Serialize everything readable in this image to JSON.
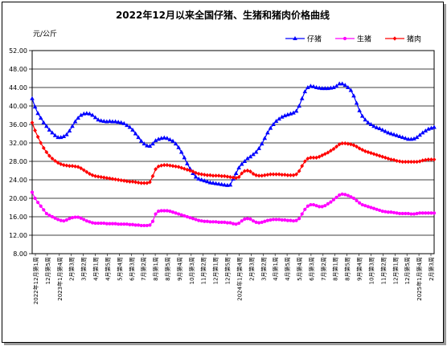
{
  "chart_data": {
    "type": "line",
    "title": "2022年12月以来全国仔猪、生猪和猪肉价格曲线",
    "unit_label": "元/公斤",
    "ylim": [
      8.0,
      52.0
    ],
    "y_ticks": [
      "8.00",
      "12.00",
      "16.00",
      "20.00",
      "24.00",
      "28.00",
      "32.00",
      "36.00",
      "40.00",
      "44.00",
      "48.00",
      "52.00"
    ],
    "grid": true,
    "legend_position": "top-right",
    "x_tick_labels": [
      "2022年12月第1周",
      "12月第5周",
      "2023年1月第4周",
      "2月第3周",
      "3月第2周",
      "4月第1周",
      "4月第5周",
      "5月第4周",
      "6月第3周",
      "7月第2周",
      "8月第1周",
      "8月第5周",
      "9月第4周",
      "10月第3周",
      "11月第2周",
      "12月第1周",
      "12月第5周",
      "2024年1月第4周",
      "2月第3周",
      "3月第2周",
      "4月第1周",
      "4月第5周",
      "5月第4周",
      "6月第3周",
      "7月第2周",
      "8月第1周",
      "8月第5周",
      "9月第4周",
      "10月第3周",
      "11月第2周",
      "12月第1周",
      "12月第5周",
      "2025年1月第4周",
      "2月第3周"
    ],
    "series": [
      {
        "name": "仔猪",
        "color": "#0000ff",
        "marker": "triangle",
        "values": [
          41.6,
          39.8,
          38.4,
          37.4,
          36.4,
          35.6,
          34.8,
          34.2,
          33.6,
          33.2,
          33.2,
          33.4,
          33.8,
          34.6,
          35.6,
          36.6,
          37.4,
          38.0,
          38.3,
          38.4,
          38.3,
          38.0,
          37.5,
          37.0,
          36.8,
          36.7,
          36.6,
          36.7,
          36.6,
          36.6,
          36.5,
          36.4,
          36.2,
          35.8,
          35.4,
          34.8,
          34.0,
          33.2,
          32.4,
          31.8,
          31.4,
          31.3,
          31.8,
          32.5,
          32.8,
          33.0,
          33.1,
          33.0,
          32.7,
          32.4,
          31.8,
          31.0,
          30.0,
          28.8,
          27.5,
          26.4,
          25.4,
          24.6,
          24.2,
          24.0,
          23.8,
          23.6,
          23.4,
          23.3,
          23.2,
          23.1,
          23.0,
          22.9,
          22.8,
          22.9,
          24.2,
          25.4,
          26.6,
          27.4,
          28.0,
          28.6,
          29.0,
          29.5,
          30.0,
          30.8,
          31.8,
          33.0,
          34.2,
          35.2,
          36.0,
          36.7,
          37.2,
          37.6,
          37.9,
          38.1,
          38.3,
          38.5,
          38.9,
          40.0,
          41.6,
          43.1,
          44.0,
          44.3,
          44.2,
          44.0,
          43.9,
          43.8,
          43.8,
          43.8,
          43.9,
          44.0,
          44.3,
          44.8,
          44.8,
          44.5,
          44.0,
          43.4,
          42.2,
          40.6,
          39.0,
          37.8,
          37.0,
          36.4,
          36.0,
          35.6,
          35.3,
          35.1,
          34.8,
          34.5,
          34.2,
          34.0,
          33.8,
          33.6,
          33.4,
          33.2,
          33.0,
          32.8,
          32.8,
          32.9,
          33.2,
          33.7,
          34.2,
          34.6,
          35.0,
          35.2,
          35.4
        ]
      },
      {
        "name": "生猪",
        "color": "#ff00ff",
        "marker": "circle",
        "values": [
          21.3,
          20.0,
          19.1,
          18.3,
          17.5,
          16.7,
          16.3,
          16.0,
          15.7,
          15.4,
          15.2,
          15.1,
          15.3,
          15.6,
          15.8,
          15.9,
          15.9,
          15.7,
          15.4,
          15.1,
          14.9,
          14.7,
          14.6,
          14.6,
          14.6,
          14.6,
          14.5,
          14.5,
          14.5,
          14.5,
          14.4,
          14.4,
          14.4,
          14.4,
          14.3,
          14.3,
          14.2,
          14.2,
          14.1,
          14.1,
          14.1,
          14.2,
          15.0,
          16.6,
          17.2,
          17.3,
          17.3,
          17.3,
          17.2,
          17.0,
          16.8,
          16.6,
          16.4,
          16.2,
          16.0,
          15.8,
          15.6,
          15.4,
          15.2,
          15.1,
          15.0,
          15.0,
          14.9,
          14.9,
          14.9,
          14.8,
          14.8,
          14.8,
          14.7,
          14.7,
          14.5,
          14.4,
          14.6,
          15.1,
          15.5,
          15.6,
          15.5,
          15.1,
          14.8,
          14.7,
          14.8,
          15.0,
          15.2,
          15.3,
          15.4,
          15.4,
          15.4,
          15.3,
          15.3,
          15.2,
          15.2,
          15.1,
          15.2,
          15.6,
          16.6,
          17.6,
          18.3,
          18.6,
          18.6,
          18.4,
          18.2,
          18.2,
          18.4,
          18.8,
          19.2,
          19.7,
          20.2,
          20.7,
          20.9,
          20.8,
          20.6,
          20.3,
          20.0,
          19.5,
          19.0,
          18.6,
          18.4,
          18.2,
          18.0,
          17.8,
          17.6,
          17.4,
          17.2,
          17.1,
          17.0,
          17.0,
          16.9,
          16.8,
          16.7,
          16.7,
          16.7,
          16.7,
          16.6,
          16.6,
          16.7,
          16.8,
          16.8,
          16.8,
          16.8,
          16.8,
          16.8
        ]
      },
      {
        "name": "猪肉",
        "color": "#ff0000",
        "marker": "diamond",
        "values": [
          36.4,
          34.7,
          33.3,
          32.0,
          30.9,
          30.0,
          29.2,
          28.6,
          28.1,
          27.7,
          27.4,
          27.2,
          27.1,
          27.0,
          27.0,
          26.9,
          26.8,
          26.5,
          26.1,
          25.7,
          25.3,
          25.0,
          24.8,
          24.7,
          24.6,
          24.5,
          24.4,
          24.3,
          24.2,
          24.1,
          24.0,
          23.9,
          23.8,
          23.7,
          23.6,
          23.6,
          23.5,
          23.4,
          23.3,
          23.3,
          23.3,
          23.5,
          24.8,
          26.3,
          26.9,
          27.1,
          27.2,
          27.2,
          27.1,
          27.0,
          26.9,
          26.8,
          26.6,
          26.4,
          26.2,
          26.0,
          25.8,
          25.5,
          25.3,
          25.2,
          25.1,
          25.0,
          25.0,
          24.9,
          24.9,
          24.9,
          24.8,
          24.8,
          24.7,
          24.6,
          24.5,
          24.4,
          24.6,
          25.4,
          25.9,
          26.0,
          25.8,
          25.3,
          25.0,
          24.9,
          24.9,
          25.0,
          25.1,
          25.2,
          25.2,
          25.2,
          25.2,
          25.1,
          25.1,
          25.0,
          25.0,
          25.0,
          25.2,
          25.9,
          27.0,
          28.0,
          28.6,
          28.8,
          28.8,
          28.8,
          29.0,
          29.3,
          29.6,
          29.9,
          30.3,
          30.7,
          31.2,
          31.7,
          31.9,
          31.9,
          31.8,
          31.7,
          31.5,
          31.2,
          30.8,
          30.5,
          30.2,
          30.0,
          29.8,
          29.6,
          29.4,
          29.2,
          29.0,
          28.8,
          28.6,
          28.4,
          28.3,
          28.1,
          28.0,
          27.9,
          27.9,
          27.9,
          27.9,
          27.9,
          27.9,
          28.0,
          28.2,
          28.3,
          28.4,
          28.4,
          28.4
        ]
      }
    ]
  }
}
